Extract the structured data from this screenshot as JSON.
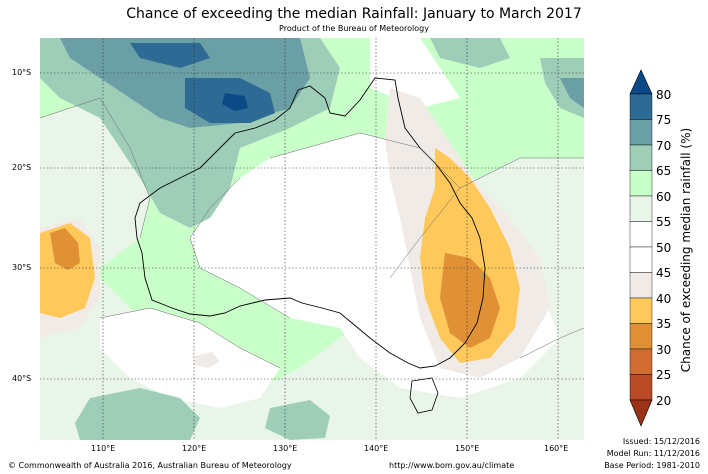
{
  "title": "Chance of exceeding the median Rainfall: January to March 2017",
  "subtitle": "Product of the Bureau of Meteorology",
  "map": {
    "latitude_labels": [
      "10°S",
      "20°S",
      "30°S",
      "40°S"
    ],
    "longitude_labels": [
      "110°E",
      "120°E",
      "130°E",
      "140°E",
      "150°E",
      "160°E"
    ]
  },
  "colorbar": {
    "label": "Chance of exceeding median rainfall (%)",
    "ticks": [
      "80",
      "75",
      "70",
      "65",
      "60",
      "55",
      "50",
      "45",
      "40",
      "35",
      "30",
      "25",
      "20"
    ],
    "colors": [
      "#2d6b94",
      "#6a9fa5",
      "#9ecdb8",
      "#c9ffc9",
      "#eaf5ea",
      "#ffffff",
      "#ffffff",
      "#f0ebe6",
      "#fec85a",
      "#e09136",
      "#d06b32",
      "#b84a26"
    ],
    "over_color": "#0b4a86",
    "under_color": "#9a3318"
  },
  "footer": {
    "copyright": "© Commonwealth of Australia 2016, Australian Bureau of Meteorology",
    "url": "http://www.bom.gov.au/climate",
    "issued": "Issued: 15/12/2016",
    "model_run": "Model Run: 11/12/2016",
    "base_period": "Base Period: 1981-2010"
  }
}
